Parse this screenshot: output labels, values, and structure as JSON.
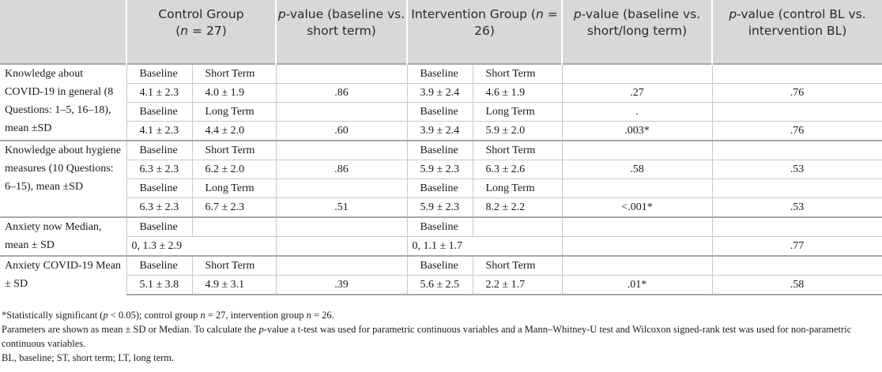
{
  "header": {
    "col1": "",
    "control_group": {
      "line1": "Control Group",
      "n_label": "n",
      "n_value": " = 27)"
    },
    "pvalue_short": {
      "p": "p",
      "text": "-value (baseline vs. short term)"
    },
    "intervention_group": {
      "line1": "Intervention Group (",
      "n_label": "n",
      "n_value": " = 26)"
    },
    "pvalue_short_long": {
      "p": "p",
      "text": "-value (baseline vs. short/long term)"
    },
    "pvalue_control_intervention": {
      "p": "p",
      "text": "-value (control BL vs. intervention BL)"
    }
  },
  "groups": {
    "knowledge_covid": {
      "label": "Knowledge about COVID-19 in general (8 Questions: 1–5, 16–18), mean ±SD",
      "rows": [
        {
          "c1": "Baseline",
          "c2": "Short Term",
          "p1": "",
          "i1": "Baseline",
          "i2": "Short Term",
          "p2": "",
          "p3": ""
        },
        {
          "c1": "4.1 ± 2.3",
          "c2": "4.0 ± 1.9",
          "p1": ".86",
          "i1": "3.9 ± 2.4",
          "i2": "4.6 ± 1.9",
          "p2": ".27",
          "p3": ".76"
        },
        {
          "c1": "Baseline",
          "c2": "Long Term",
          "p1": "",
          "i1": "Baseline",
          "i2": "Long Term",
          "p2": ".",
          "p3": ""
        },
        {
          "c1": "4.1 ± 2.3",
          "c2": "4.4 ± 2.0",
          "p1": ".60",
          "i1": "3.9 ± 2.4",
          "i2": "5.9 ± 2.0",
          "p2": ".003*",
          "p3": ".76"
        }
      ]
    },
    "knowledge_hygiene": {
      "label": "Knowledge about hygiene measures (10 Questions: 6–15), mean ±SD",
      "rows": [
        {
          "c1": "Baseline",
          "c2": "Short Term",
          "p1": "",
          "i1": "Baseline",
          "i2": "Short Term",
          "p2": "",
          "p3": ""
        },
        {
          "c1": "6.3 ± 2.3",
          "c2": "6.2 ± 2.0",
          "p1": ".86",
          "i1": "5.9 ± 2.3",
          "i2": "6.3 ± 2.6",
          "p2": ".58",
          "p3": ".53"
        },
        {
          "c1": "Baseline",
          "c2": "Long Term",
          "p1": "",
          "i1": "Baseline",
          "i2": "Long Term",
          "p2": "",
          "p3": ""
        },
        {
          "c1": "6.3 ± 2.3",
          "c2": "6.7 ± 2.3",
          "p1": ".51",
          "i1": "5.9 ± 2.3",
          "i2": "8.2 ± 2.2",
          "p2": "<.001*",
          "p3": ".53"
        }
      ]
    },
    "anxiety_now": {
      "label": "Anxiety now Median, mean ± SD",
      "rows": [
        {
          "c1": "Baseline",
          "c2": "",
          "p1": "",
          "i1": "Baseline",
          "i2": "",
          "p2": "",
          "p3": ""
        },
        {
          "c1": "0, 1.3 ± 2.9",
          "c2": "",
          "p1": "",
          "i1": "0, 1.1 ± 1.7",
          "i2": "",
          "p2": "",
          "p3": ".77"
        }
      ]
    },
    "anxiety_covid": {
      "label": "Anxiety COVID-19 Mean ± SD",
      "rows": [
        {
          "c1": "Baseline",
          "c2": "Short Term",
          "p1": "",
          "i1": "Baseline",
          "i2": "Short Term",
          "p2": "",
          "p3": ""
        },
        {
          "c1": "5.1 ± 3.8",
          "c2": "4.9 ± 3.1",
          "p1": ".39",
          "i1": "5.6 ± 2.5",
          "i2": "2.2 ± 1.7",
          "p2": ".01*",
          "p3": ".58"
        }
      ]
    }
  },
  "footnotes": {
    "significance": {
      "a": "*Statistically significant (",
      "p": "p",
      "b": " < 0.05); control group ",
      "n1": "n",
      "c": " = 27, intervention group ",
      "n2": "n",
      "d": " = 26."
    },
    "parameters": {
      "a": "Parameters are shown as mean ± SD or Median. To calculate the ",
      "p": "p",
      "b": "-value a t-test was used for parametric continuous variables and a Mann–Whitney-U test and Wilcoxon signed-rank test was used for non-parametric continuous variables."
    },
    "abbreviations": "BL, baseline; ST, short term; LT, long term."
  }
}
